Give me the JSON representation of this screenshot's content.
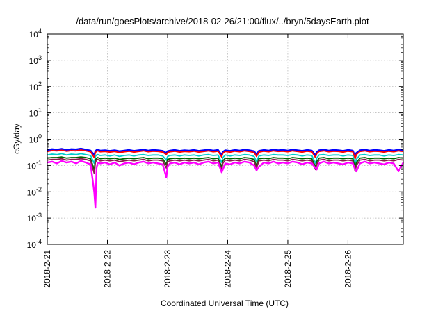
{
  "chart_data": {
    "type": "line",
    "title": "/data/run/goesPlots/archive/2018-02-26/21:00/flux/../bryn/5daysEarth.plot",
    "xlabel": "Coordinated Universal Time (UTC)",
    "ylabel": "cGy/day",
    "yscale": "log",
    "ylim": [
      0.0001,
      10000
    ],
    "xlim": [
      0,
      5.92
    ],
    "x_unit": "days since 2018-2-21 00:00 UTC",
    "x_ticks": [
      {
        "value": 0,
        "label": "2018-2-21"
      },
      {
        "value": 1,
        "label": "2018-2-22"
      },
      {
        "value": 2,
        "label": "2018-2-23"
      },
      {
        "value": 3,
        "label": "2018-2-24"
      },
      {
        "value": 4,
        "label": "2018-2-25"
      },
      {
        "value": 5,
        "label": "2018-2-26"
      }
    ],
    "y_ticks": [
      {
        "value": 0.0001,
        "base": "10",
        "exp": "-4"
      },
      {
        "value": 0.001,
        "base": "10",
        "exp": "-3"
      },
      {
        "value": 0.01,
        "base": "10",
        "exp": "-2"
      },
      {
        "value": 0.1,
        "base": "10",
        "exp": "-1"
      },
      {
        "value": 1,
        "base": "10",
        "exp": "0"
      },
      {
        "value": 10,
        "base": "10",
        "exp": "1"
      },
      {
        "value": 100,
        "base": "10",
        "exp": "2"
      },
      {
        "value": 1000,
        "base": "10",
        "exp": "3"
      },
      {
        "value": 10000,
        "base": "10",
        "exp": "4"
      }
    ],
    "grid": true,
    "legend": "none",
    "x": [
      0.0,
      0.08,
      0.16,
      0.24,
      0.32,
      0.4,
      0.48,
      0.56,
      0.64,
      0.72,
      0.78,
      0.8,
      0.82,
      0.84,
      0.88,
      0.96,
      1.04,
      1.12,
      1.2,
      1.28,
      1.36,
      1.44,
      1.52,
      1.6,
      1.68,
      1.76,
      1.84,
      1.92,
      1.98,
      2.0,
      2.04,
      2.12,
      2.2,
      2.28,
      2.36,
      2.44,
      2.52,
      2.6,
      2.68,
      2.76,
      2.84,
      2.9,
      2.92,
      2.96,
      3.04,
      3.12,
      3.2,
      3.28,
      3.36,
      3.44,
      3.48,
      3.52,
      3.6,
      3.68,
      3.76,
      3.84,
      3.92,
      4.0,
      4.08,
      4.16,
      4.24,
      4.32,
      4.4,
      4.46,
      4.48,
      4.52,
      4.6,
      4.68,
      4.76,
      4.84,
      4.92,
      5.0,
      5.08,
      5.12,
      5.14,
      5.2,
      5.28,
      5.36,
      5.44,
      5.52,
      5.6,
      5.68,
      5.76,
      5.84,
      5.92
    ],
    "series": [
      {
        "name": "",
        "color": "#0000ff",
        "values": [
          0.38,
          0.42,
          0.4,
          0.43,
          0.39,
          0.42,
          0.41,
          0.44,
          0.4,
          0.37,
          0.25,
          0.35,
          0.39,
          0.4,
          0.37,
          0.38,
          0.36,
          0.38,
          0.35,
          0.37,
          0.39,
          0.36,
          0.38,
          0.4,
          0.37,
          0.39,
          0.38,
          0.36,
          0.3,
          0.35,
          0.37,
          0.39,
          0.36,
          0.38,
          0.37,
          0.39,
          0.36,
          0.38,
          0.4,
          0.37,
          0.39,
          0.25,
          0.33,
          0.38,
          0.36,
          0.39,
          0.37,
          0.4,
          0.38,
          0.35,
          0.26,
          0.36,
          0.39,
          0.37,
          0.4,
          0.38,
          0.39,
          0.37,
          0.4,
          0.38,
          0.36,
          0.39,
          0.37,
          0.24,
          0.32,
          0.38,
          0.4,
          0.37,
          0.39,
          0.38,
          0.36,
          0.39,
          0.37,
          0.22,
          0.3,
          0.38,
          0.4,
          0.37,
          0.39,
          0.38,
          0.36,
          0.39,
          0.37,
          0.4,
          0.38
        ]
      },
      {
        "name": "",
        "color": "#ff0000",
        "values": [
          0.34,
          0.37,
          0.36,
          0.38,
          0.35,
          0.37,
          0.36,
          0.39,
          0.36,
          0.33,
          0.2,
          0.31,
          0.35,
          0.36,
          0.33,
          0.34,
          0.32,
          0.34,
          0.31,
          0.33,
          0.35,
          0.32,
          0.34,
          0.36,
          0.33,
          0.35,
          0.34,
          0.32,
          0.26,
          0.31,
          0.33,
          0.35,
          0.32,
          0.34,
          0.33,
          0.35,
          0.32,
          0.34,
          0.36,
          0.33,
          0.35,
          0.21,
          0.29,
          0.34,
          0.32,
          0.35,
          0.33,
          0.36,
          0.34,
          0.31,
          0.22,
          0.32,
          0.35,
          0.33,
          0.36,
          0.34,
          0.35,
          0.33,
          0.36,
          0.34,
          0.32,
          0.35,
          0.33,
          0.2,
          0.28,
          0.34,
          0.36,
          0.33,
          0.35,
          0.34,
          0.32,
          0.35,
          0.33,
          0.18,
          0.26,
          0.34,
          0.36,
          0.33,
          0.35,
          0.34,
          0.32,
          0.35,
          0.33,
          0.36,
          0.34
        ]
      },
      {
        "name": "",
        "color": "#00cccc",
        "values": [
          0.25,
          0.27,
          0.26,
          0.28,
          0.25,
          0.27,
          0.26,
          0.28,
          0.26,
          0.24,
          0.12,
          0.22,
          0.25,
          0.26,
          0.24,
          0.25,
          0.23,
          0.25,
          0.22,
          0.24,
          0.25,
          0.23,
          0.25,
          0.26,
          0.24,
          0.25,
          0.25,
          0.23,
          0.16,
          0.22,
          0.24,
          0.25,
          0.23,
          0.25,
          0.24,
          0.25,
          0.23,
          0.25,
          0.26,
          0.24,
          0.25,
          0.13,
          0.2,
          0.25,
          0.23,
          0.25,
          0.24,
          0.26,
          0.25,
          0.22,
          0.14,
          0.23,
          0.25,
          0.24,
          0.26,
          0.25,
          0.25,
          0.24,
          0.26,
          0.25,
          0.23,
          0.25,
          0.24,
          0.12,
          0.19,
          0.25,
          0.26,
          0.24,
          0.25,
          0.25,
          0.23,
          0.25,
          0.24,
          0.11,
          0.17,
          0.25,
          0.26,
          0.24,
          0.25,
          0.25,
          0.23,
          0.25,
          0.24,
          0.26,
          0.25
        ]
      },
      {
        "name": "",
        "color": "#006400",
        "values": [
          0.19,
          0.2,
          0.2,
          0.21,
          0.19,
          0.2,
          0.2,
          0.21,
          0.2,
          0.18,
          0.07,
          0.16,
          0.19,
          0.2,
          0.18,
          0.19,
          0.18,
          0.19,
          0.17,
          0.18,
          0.19,
          0.18,
          0.19,
          0.2,
          0.18,
          0.19,
          0.19,
          0.18,
          0.11,
          0.17,
          0.18,
          0.19,
          0.18,
          0.19,
          0.18,
          0.19,
          0.18,
          0.19,
          0.2,
          0.18,
          0.19,
          0.09,
          0.15,
          0.19,
          0.18,
          0.19,
          0.18,
          0.2,
          0.19,
          0.17,
          0.1,
          0.18,
          0.19,
          0.18,
          0.2,
          0.19,
          0.19,
          0.18,
          0.2,
          0.19,
          0.18,
          0.19,
          0.18,
          0.09,
          0.14,
          0.19,
          0.2,
          0.18,
          0.19,
          0.19,
          0.18,
          0.19,
          0.18,
          0.08,
          0.13,
          0.19,
          0.2,
          0.18,
          0.19,
          0.19,
          0.18,
          0.19,
          0.18,
          0.2,
          0.19
        ]
      },
      {
        "name": "",
        "color": "#8b1a4a",
        "values": [
          0.16,
          0.17,
          0.17,
          0.18,
          0.16,
          0.17,
          0.17,
          0.18,
          0.17,
          0.15,
          0.05,
          0.13,
          0.16,
          0.17,
          0.15,
          0.16,
          0.15,
          0.16,
          0.14,
          0.15,
          0.16,
          0.15,
          0.16,
          0.17,
          0.15,
          0.16,
          0.16,
          0.15,
          0.08,
          0.14,
          0.15,
          0.16,
          0.15,
          0.16,
          0.15,
          0.16,
          0.15,
          0.16,
          0.17,
          0.15,
          0.16,
          0.07,
          0.12,
          0.16,
          0.15,
          0.16,
          0.15,
          0.17,
          0.16,
          0.14,
          0.08,
          0.15,
          0.16,
          0.15,
          0.17,
          0.16,
          0.16,
          0.15,
          0.17,
          0.16,
          0.15,
          0.16,
          0.15,
          0.07,
          0.11,
          0.16,
          0.17,
          0.15,
          0.16,
          0.16,
          0.15,
          0.16,
          0.15,
          0.06,
          0.1,
          0.16,
          0.17,
          0.15,
          0.16,
          0.16,
          0.15,
          0.16,
          0.15,
          0.17,
          0.16
        ]
      },
      {
        "name": "",
        "color": "#ff00ff",
        "values": [
          0.13,
          0.14,
          0.12,
          0.15,
          0.13,
          0.14,
          0.12,
          0.15,
          0.13,
          0.11,
          0.01,
          0.0025,
          0.08,
          0.13,
          0.12,
          0.13,
          0.11,
          0.13,
          0.1,
          0.12,
          0.13,
          0.11,
          0.13,
          0.14,
          0.12,
          0.13,
          0.12,
          0.11,
          0.035,
          0.09,
          0.12,
          0.13,
          0.11,
          0.13,
          0.12,
          0.13,
          0.11,
          0.13,
          0.14,
          0.12,
          0.13,
          0.055,
          0.07,
          0.12,
          0.11,
          0.13,
          0.12,
          0.14,
          0.13,
          0.1,
          0.065,
          0.09,
          0.13,
          0.12,
          0.14,
          0.12,
          0.13,
          0.12,
          0.14,
          0.13,
          0.11,
          0.13,
          0.12,
          0.08,
          0.07,
          0.12,
          0.14,
          0.12,
          0.13,
          0.12,
          0.11,
          0.13,
          0.12,
          0.07,
          0.06,
          0.12,
          0.14,
          0.12,
          0.13,
          0.12,
          0.11,
          0.13,
          0.12,
          0.06,
          0.13
        ]
      }
    ]
  }
}
